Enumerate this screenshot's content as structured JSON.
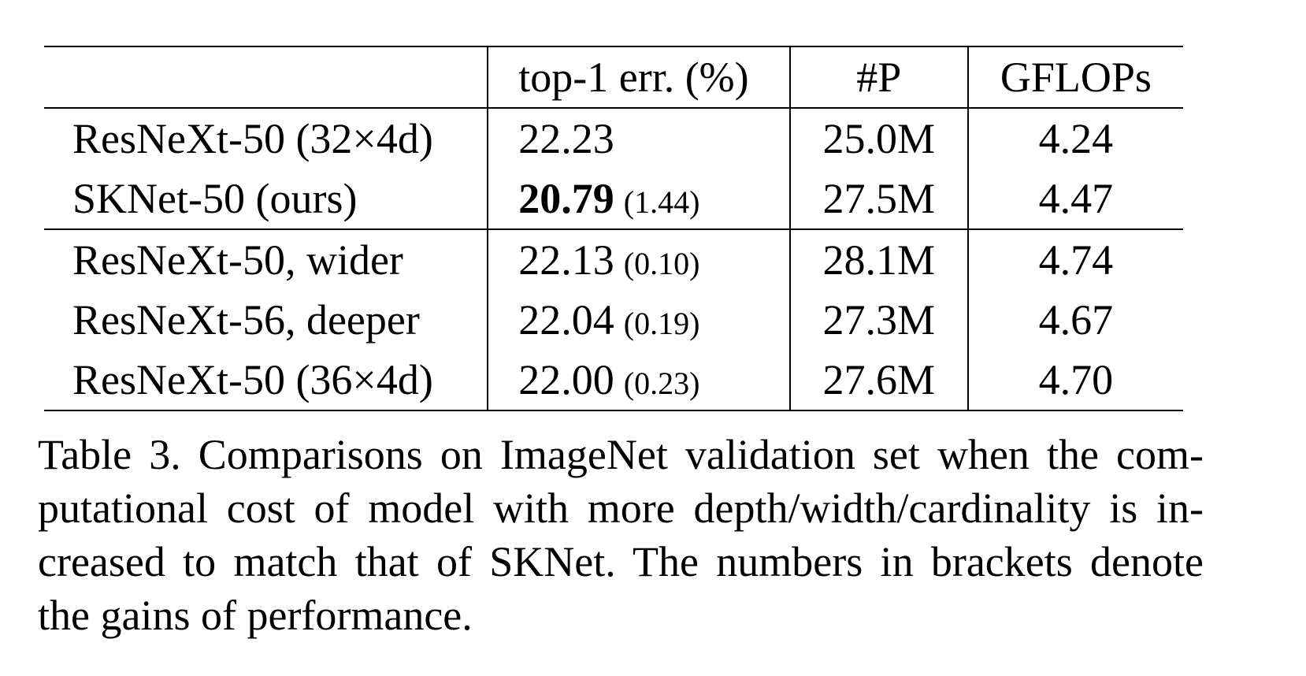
{
  "table": {
    "headers": [
      "",
      "top-1 err. (%)",
      "#P",
      "GFLOPs"
    ],
    "rows": [
      {
        "model": "ResNeXt-50 (32×4d)",
        "top1": "22.23",
        "gain": "",
        "params": "25.0M",
        "gflops": "4.24"
      },
      {
        "model": "SKNet-50 (ours)",
        "top1": "20.79",
        "gain": "(1.44)",
        "params": "27.5M",
        "gflops": "4.47"
      },
      {
        "model": "ResNeXt-50, wider",
        "top1": "22.13",
        "gain": "(0.10)",
        "params": "28.1M",
        "gflops": "4.74"
      },
      {
        "model": "ResNeXt-56, deeper",
        "top1": "22.04",
        "gain": "(0.19)",
        "params": "27.3M",
        "gflops": "4.67"
      },
      {
        "model": "ResNeXt-50 (36×4d)",
        "top1": "22.00",
        "gain": "(0.23)",
        "params": "27.6M",
        "gflops": "4.70"
      }
    ]
  },
  "caption": {
    "lines": [
      "Table 3. Comparisons on ImageNet validation set when the com-",
      "putational cost of model with more depth/width/cardinality is in-",
      "creased to match that of SKNet. The numbers in brackets denote",
      "the gains of performance."
    ]
  }
}
